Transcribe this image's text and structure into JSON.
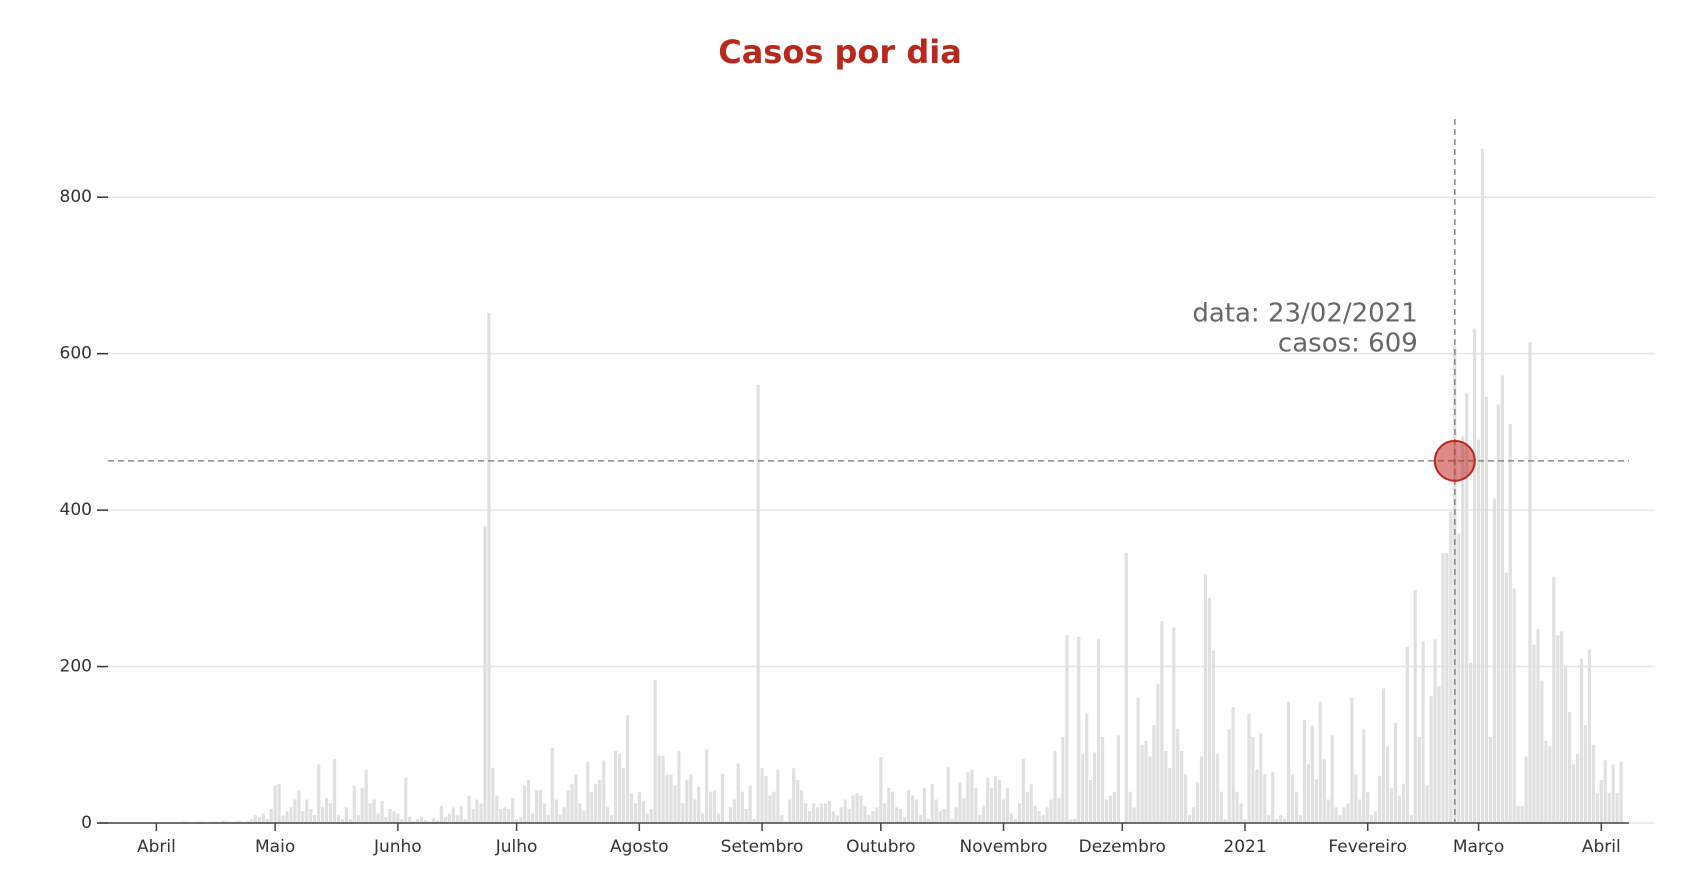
{
  "chart_data": {
    "type": "bar",
    "title": "Casos por dia",
    "color": "#e0e0e0",
    "x": [
      "2020-03-18",
      "2020-03-19",
      "2020-03-20",
      "2020-03-21",
      "2020-03-22",
      "2020-03-23",
      "2020-03-24",
      "2020-03-25",
      "2020-03-26",
      "2020-03-27",
      "2020-03-28",
      "2020-03-29",
      "2020-03-30",
      "2020-03-31",
      "2020-04-01",
      "2020-04-02",
      "2020-04-03",
      "2020-04-04",
      "2020-04-05",
      "2020-04-06",
      "2020-04-07",
      "2020-04-08",
      "2020-04-09",
      "2020-04-10",
      "2020-04-11",
      "2020-04-12",
      "2020-04-13",
      "2020-04-14",
      "2020-04-15",
      "2020-04-16",
      "2020-04-17",
      "2020-04-18",
      "2020-04-19",
      "2020-04-20",
      "2020-04-21",
      "2020-04-22",
      "2020-04-23",
      "2020-04-24",
      "2020-04-25",
      "2020-04-26",
      "2020-04-27",
      "2020-04-28",
      "2020-04-29",
      "2020-04-30",
      "2020-05-01",
      "2020-05-02",
      "2020-05-03",
      "2020-05-04",
      "2020-05-05",
      "2020-05-06",
      "2020-05-07",
      "2020-05-08",
      "2020-05-09",
      "2020-05-10",
      "2020-05-11",
      "2020-05-12",
      "2020-05-13",
      "2020-05-14",
      "2020-05-15",
      "2020-05-16",
      "2020-05-17",
      "2020-05-18",
      "2020-05-19",
      "2020-05-20",
      "2020-05-21",
      "2020-05-22",
      "2020-05-23",
      "2020-05-24",
      "2020-05-25",
      "2020-05-26",
      "2020-05-27",
      "2020-05-28",
      "2020-05-29",
      "2020-05-30",
      "2020-05-31",
      "2020-06-01",
      "2020-06-02",
      "2020-06-03",
      "2020-06-04",
      "2020-06-05",
      "2020-06-06",
      "2020-06-07",
      "2020-06-08",
      "2020-06-09",
      "2020-06-10",
      "2020-06-11",
      "2020-06-12",
      "2020-06-13",
      "2020-06-14",
      "2020-06-15",
      "2020-06-16",
      "2020-06-17",
      "2020-06-18",
      "2020-06-19",
      "2020-06-20",
      "2020-06-21",
      "2020-06-22",
      "2020-06-23",
      "2020-06-24",
      "2020-06-25",
      "2020-06-26",
      "2020-06-27",
      "2020-06-28",
      "2020-06-29",
      "2020-06-30",
      "2020-07-01",
      "2020-07-02",
      "2020-07-03",
      "2020-07-04",
      "2020-07-05",
      "2020-07-06",
      "2020-07-07",
      "2020-07-08",
      "2020-07-09",
      "2020-07-10",
      "2020-07-11",
      "2020-07-12",
      "2020-07-13",
      "2020-07-14",
      "2020-07-15",
      "2020-07-16",
      "2020-07-17",
      "2020-07-18",
      "2020-07-19",
      "2020-07-20",
      "2020-07-21",
      "2020-07-22",
      "2020-07-23",
      "2020-07-24",
      "2020-07-25",
      "2020-07-26",
      "2020-07-27",
      "2020-07-28",
      "2020-07-29",
      "2020-07-30",
      "2020-07-31",
      "2020-08-01",
      "2020-08-02",
      "2020-08-03",
      "2020-08-04",
      "2020-08-05",
      "2020-08-06",
      "2020-08-07",
      "2020-08-08",
      "2020-08-09",
      "2020-08-10",
      "2020-08-11",
      "2020-08-12",
      "2020-08-13",
      "2020-08-14",
      "2020-08-15",
      "2020-08-16",
      "2020-08-17",
      "2020-08-18",
      "2020-08-19",
      "2020-08-20",
      "2020-08-21",
      "2020-08-22",
      "2020-08-23",
      "2020-08-24",
      "2020-08-25",
      "2020-08-26",
      "2020-08-27",
      "2020-08-28",
      "2020-08-29",
      "2020-08-30",
      "2020-08-31",
      "2020-09-01",
      "2020-09-02",
      "2020-09-03",
      "2020-09-04",
      "2020-09-05",
      "2020-09-06",
      "2020-09-07",
      "2020-09-08",
      "2020-09-09",
      "2020-09-10",
      "2020-09-11",
      "2020-09-12",
      "2020-09-13",
      "2020-09-14",
      "2020-09-15",
      "2020-09-16",
      "2020-09-17",
      "2020-09-18",
      "2020-09-19",
      "2020-09-20",
      "2020-09-21",
      "2020-09-22",
      "2020-09-23",
      "2020-09-24",
      "2020-09-25",
      "2020-09-26",
      "2020-09-27",
      "2020-09-28",
      "2020-09-29",
      "2020-09-30",
      "2020-10-01",
      "2020-10-02",
      "2020-10-03",
      "2020-10-04",
      "2020-10-05",
      "2020-10-06",
      "2020-10-07",
      "2020-10-08",
      "2020-10-09",
      "2020-10-10",
      "2020-10-11",
      "2020-10-12",
      "2020-10-13",
      "2020-10-14",
      "2020-10-15",
      "2020-10-16",
      "2020-10-17",
      "2020-10-18",
      "2020-10-19",
      "2020-10-20",
      "2020-10-21",
      "2020-10-22",
      "2020-10-23",
      "2020-10-24",
      "2020-10-25",
      "2020-10-26",
      "2020-10-27",
      "2020-10-28",
      "2020-10-29",
      "2020-10-30",
      "2020-10-31",
      "2020-11-01",
      "2020-11-02",
      "2020-11-03",
      "2020-11-04",
      "2020-11-05",
      "2020-11-06",
      "2020-11-07",
      "2020-11-08",
      "2020-11-09",
      "2020-11-10",
      "2020-11-11",
      "2020-11-12",
      "2020-11-13",
      "2020-11-14",
      "2020-11-15",
      "2020-11-16",
      "2020-11-17",
      "2020-11-18",
      "2020-11-19",
      "2020-11-20",
      "2020-11-21",
      "2020-11-22",
      "2020-11-23",
      "2020-11-24",
      "2020-11-25",
      "2020-11-26",
      "2020-11-27",
      "2020-11-28",
      "2020-11-29",
      "2020-11-30",
      "2020-12-01",
      "2020-12-02",
      "2020-12-03",
      "2020-12-04",
      "2020-12-05",
      "2020-12-06",
      "2020-12-07",
      "2020-12-08",
      "2020-12-09",
      "2020-12-10",
      "2020-12-11",
      "2020-12-12",
      "2020-12-13",
      "2020-12-14",
      "2020-12-15",
      "2020-12-16",
      "2020-12-17",
      "2020-12-18",
      "2020-12-19",
      "2020-12-20",
      "2020-12-21",
      "2020-12-22",
      "2020-12-23",
      "2020-12-24",
      "2020-12-25",
      "2020-12-26",
      "2020-12-27",
      "2020-12-28",
      "2020-12-29",
      "2020-12-30",
      "2020-12-31",
      "2021-01-01",
      "2021-01-02",
      "2021-01-03",
      "2021-01-04",
      "2021-01-05",
      "2021-01-06",
      "2021-01-07",
      "2021-01-08",
      "2021-01-09",
      "2021-01-10",
      "2021-01-11",
      "2021-01-12",
      "2021-01-13",
      "2021-01-14",
      "2021-01-15",
      "2021-01-16",
      "2021-01-17",
      "2021-01-18",
      "2021-01-19",
      "2021-01-20",
      "2021-01-21",
      "2021-01-22",
      "2021-01-23",
      "2021-01-24",
      "2021-01-25",
      "2021-01-26",
      "2021-01-27",
      "2021-01-28",
      "2021-01-29",
      "2021-01-30",
      "2021-01-31",
      "2021-02-01",
      "2021-02-02",
      "2021-02-03",
      "2021-02-04",
      "2021-02-05",
      "2021-02-06",
      "2021-02-07",
      "2021-02-08",
      "2021-02-09",
      "2021-02-10",
      "2021-02-11",
      "2021-02-12",
      "2021-02-13",
      "2021-02-14",
      "2021-02-15",
      "2021-02-16",
      "2021-02-17",
      "2021-02-18",
      "2021-02-19",
      "2021-02-20",
      "2021-02-21",
      "2021-02-22",
      "2021-02-23",
      "2021-02-24",
      "2021-02-25",
      "2021-02-26",
      "2021-02-27",
      "2021-02-28",
      "2021-03-01",
      "2021-03-02",
      "2021-03-03",
      "2021-03-04",
      "2021-03-05",
      "2021-03-06",
      "2021-03-07",
      "2021-03-08",
      "2021-03-09",
      "2021-03-10",
      "2021-03-11",
      "2021-03-12",
      "2021-03-13",
      "2021-03-14",
      "2021-03-15",
      "2021-03-16",
      "2021-03-17",
      "2021-03-18",
      "2021-03-19",
      "2021-03-20",
      "2021-03-21",
      "2021-03-22",
      "2021-03-23",
      "2021-03-24",
      "2021-03-25",
      "2021-03-26",
      "2021-03-27",
      "2021-03-28",
      "2021-03-29",
      "2021-03-30",
      "2021-03-31",
      "2021-04-01",
      "2021-04-02",
      "2021-04-03",
      "2021-04-04",
      "2021-04-05",
      "2021-04-06"
    ],
    "values": [
      0,
      0,
      0,
      0,
      0,
      0,
      0,
      0,
      0,
      0,
      0,
      0,
      1,
      1,
      0,
      0,
      1,
      0,
      1,
      1,
      0,
      2,
      1,
      0,
      1,
      2,
      1,
      0,
      1,
      2,
      1,
      3,
      2,
      1,
      2,
      3,
      1,
      2,
      5,
      10,
      8,
      12,
      5,
      18,
      48,
      50,
      10,
      15,
      20,
      30,
      42,
      15,
      30,
      18,
      10,
      75,
      20,
      32,
      25,
      82,
      10,
      5,
      20,
      5,
      48,
      10,
      45,
      68,
      25,
      30,
      12,
      28,
      8,
      18,
      15,
      12,
      5,
      58,
      8,
      2,
      5,
      8,
      4,
      2,
      6,
      3,
      22,
      8,
      12,
      20,
      10,
      22,
      5,
      35,
      18,
      30,
      25,
      380,
      652,
      70,
      35,
      18,
      20,
      18,
      32,
      5,
      8,
      48,
      55,
      12,
      42,
      42,
      25,
      10,
      96,
      30,
      10,
      20,
      42,
      50,
      62,
      25,
      15,
      78,
      40,
      50,
      55,
      80,
      20,
      10,
      92,
      88,
      70,
      138,
      38,
      25,
      40,
      28,
      12,
      18,
      183,
      86,
      86,
      62,
      62,
      48,
      92,
      25,
      55,
      62,
      30,
      46,
      12,
      94,
      40,
      42,
      12,
      63,
      2,
      20,
      30,
      76,
      40,
      18,
      48,
      5,
      560,
      70,
      60,
      35,
      40,
      68,
      10,
      2,
      30,
      70,
      55,
      42,
      25,
      15,
      25,
      20,
      25,
      25,
      28,
      15,
      10,
      20,
      30,
      18,
      35,
      38,
      35,
      22,
      10,
      15,
      20,
      84,
      25,
      45,
      40,
      20,
      18,
      8,
      42,
      35,
      30,
      10,
      45,
      5,
      50,
      30,
      15,
      18,
      72,
      5,
      20,
      52,
      32,
      65,
      68,
      45,
      10,
      22,
      58,
      45,
      60,
      55,
      30,
      45,
      12,
      5,
      25,
      82,
      40,
      50,
      22,
      15,
      10,
      20,
      30,
      92,
      32,
      110,
      240,
      5,
      5,
      238,
      88,
      140,
      55,
      90,
      235,
      110,
      30,
      35,
      40,
      112,
      0,
      345,
      40,
      20,
      160,
      100,
      105,
      85,
      125,
      178,
      258,
      92,
      70,
      250,
      120,
      92,
      62,
      10,
      20,
      52,
      85,
      318,
      288,
      220,
      88,
      40,
      5,
      120,
      148,
      40,
      25,
      5,
      140,
      110,
      68,
      115,
      62,
      10,
      65,
      5,
      10,
      5,
      155,
      62,
      40,
      10,
      132,
      75,
      125,
      56,
      155,
      82,
      30,
      112,
      20,
      10,
      20,
      25,
      160,
      62,
      30,
      120,
      40,
      10,
      15,
      60,
      172,
      98,
      45,
      128,
      35,
      50,
      225,
      10,
      298,
      110,
      232,
      48,
      162,
      235,
      175,
      345,
      345,
      398,
      609,
      370,
      495,
      550,
      205,
      632,
      490,
      862,
      545,
      110,
      415,
      535,
      572,
      320,
      510,
      300,
      22,
      22,
      85,
      615,
      228,
      248,
      182,
      105,
      98,
      315,
      240,
      245,
      200,
      142,
      75,
      88,
      210,
      125,
      222,
      100,
      38,
      55,
      80,
      38,
      75,
      38,
      78
    ],
    "xlim": [
      "2020-03-17",
      "2021-04-08"
    ],
    "xticks": [
      {
        "value": "2020-04-01",
        "label": "Abril"
      },
      {
        "value": "2020-05-01",
        "label": "Maio"
      },
      {
        "value": "2020-06-01",
        "label": "Junho"
      },
      {
        "value": "2020-07-01",
        "label": "Julho"
      },
      {
        "value": "2020-08-01",
        "label": "Agosto"
      },
      {
        "value": "2020-09-01",
        "label": "Setembro"
      },
      {
        "value": "2020-10-01",
        "label": "Outubro"
      },
      {
        "value": "2020-11-01",
        "label": "Novembro"
      },
      {
        "value": "2020-12-01",
        "label": "Dezembro"
      },
      {
        "value": "2021-01-01",
        "label": "2021"
      },
      {
        "value": "2021-02-01",
        "label": "Fevereiro"
      },
      {
        "value": "2021-03-01",
        "label": "Março"
      },
      {
        "value": "2021-04-01",
        "label": "Abril"
      }
    ],
    "ylim": [
      0,
      900
    ],
    "yticks": [
      0,
      200,
      400,
      600,
      800
    ],
    "grid": true,
    "annotation": {
      "date_label": "data: 23/02/2021",
      "cases_label": "casos: 609",
      "x": "2021-02-23",
      "y": 463
    }
  }
}
